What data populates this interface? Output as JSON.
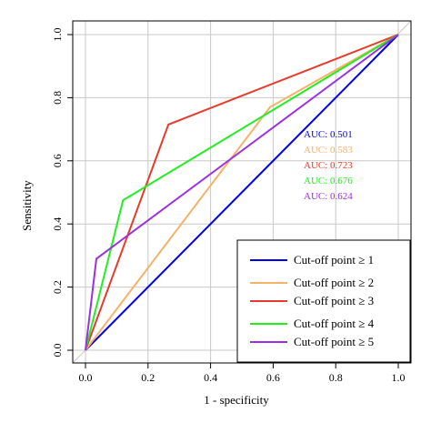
{
  "chart_data": {
    "type": "line",
    "xlabel": "1 - specificity",
    "ylabel": "Sensitivity",
    "xlim": [
      0,
      1
    ],
    "ylim": [
      0,
      1
    ],
    "xticks": [
      "0.0",
      "0.2",
      "0.4",
      "0.6",
      "0.8",
      "1.0"
    ],
    "yticks": [
      "0.0",
      "0.2",
      "0.4",
      "0.6",
      "0.8",
      "1.0"
    ],
    "grid": true,
    "reference_line": true,
    "legend_position": "bottom-right",
    "series": [
      {
        "name": "Cut-off point ≥ 1",
        "color": "#0000ee",
        "auc_label": "AUC: 0.501",
        "points": [
          [
            0,
            0
          ],
          [
            1,
            1
          ]
        ]
      },
      {
        "name": "Cut-off point ≥ 2",
        "color": "#f5b26b",
        "auc_label": "AUC: 0.583",
        "points": [
          [
            0,
            0
          ],
          [
            0.59,
            0.77
          ],
          [
            1,
            1
          ]
        ]
      },
      {
        "name": "Cut-off point ≥ 3",
        "color": "#e83a2a",
        "auc_label": "AUC: 0.723",
        "points": [
          [
            0,
            0
          ],
          [
            0.265,
            0.715
          ],
          [
            1,
            1
          ]
        ]
      },
      {
        "name": "Cut-off point ≥ 4",
        "color": "#22ee22",
        "auc_label": "AUC: 0.676",
        "points": [
          [
            0,
            0
          ],
          [
            0.12,
            0.475
          ],
          [
            1,
            1
          ]
        ]
      },
      {
        "name": "Cut-off point ≥ 5",
        "color": "#9b30e0",
        "auc_label": "AUC: 0.624",
        "points": [
          [
            0,
            0
          ],
          [
            0.035,
            0.29
          ],
          [
            1,
            1
          ]
        ]
      }
    ]
  }
}
